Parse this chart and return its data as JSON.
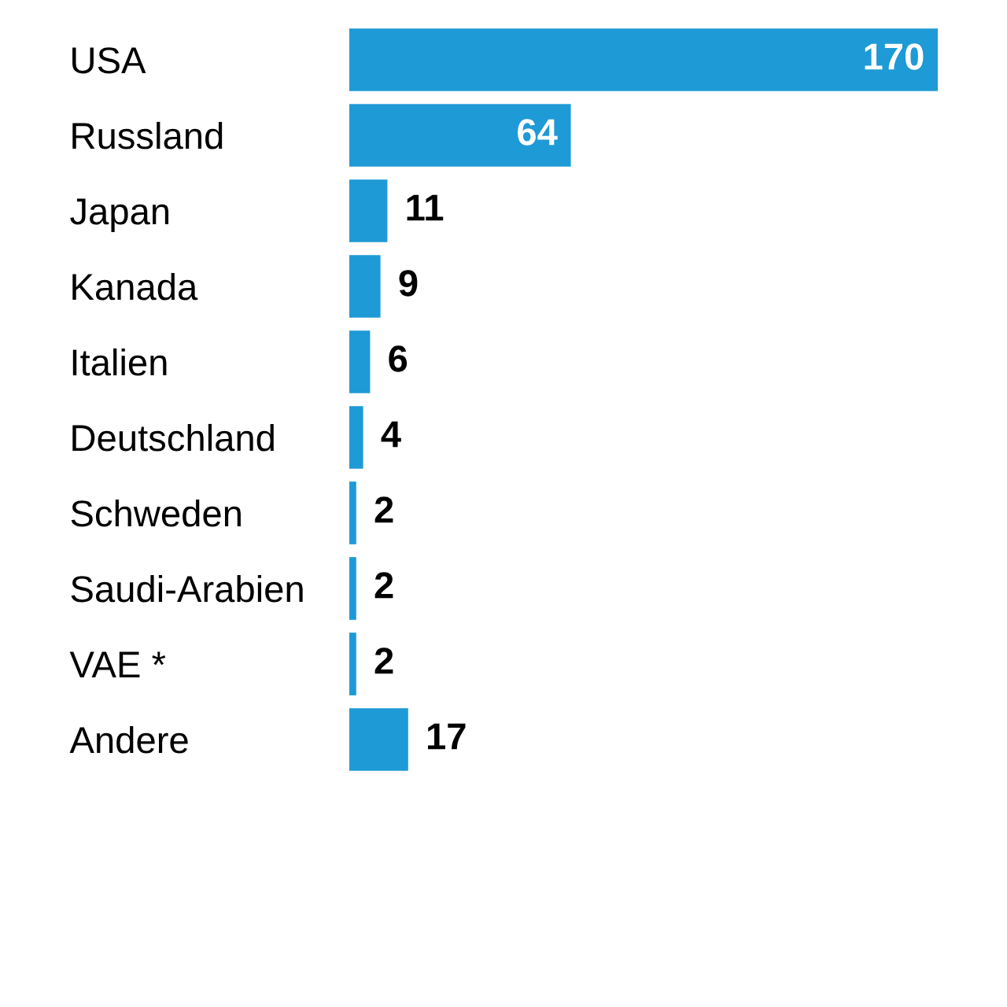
{
  "chart_data": {
    "type": "bar",
    "orientation": "horizontal",
    "categories": [
      "USA",
      "Russland",
      "Japan",
      "Kanada",
      "Italien",
      "Deutschland",
      "Schweden",
      "Saudi-Arabien",
      "VAE *",
      "Andere"
    ],
    "values": [
      170,
      64,
      11,
      9,
      6,
      4,
      2,
      2,
      2,
      17
    ],
    "color": "#1e9ad6",
    "data_labels": true,
    "tick_labels": "y",
    "grid": false,
    "legend": false
  }
}
